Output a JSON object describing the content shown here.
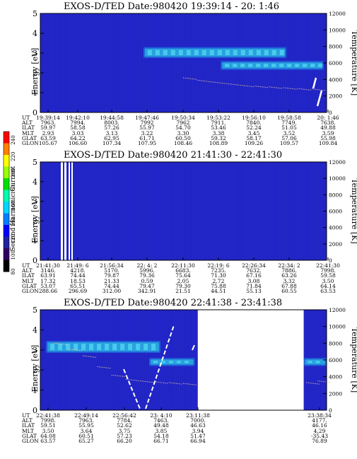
{
  "colors": {
    "background_field": "#2326c8",
    "band_bright": "#2a9fe0",
    "band_core": "#4fd6f0",
    "band_mid": "#1e5fd8",
    "temperature_dots": "#e8c9a0",
    "spike": "#ffffff",
    "frame": "#000000"
  },
  "colorbar": {
    "label": "Second Harmonic Current",
    "ticks": [
      "240",
      "220",
      "200",
      "180",
      "160",
      "140",
      "120",
      "100",
      "80"
    ],
    "colors": [
      "#ff0000",
      "#ff8000",
      "#ffff00",
      "#9bff00",
      "#00e000",
      "#00ffb0",
      "#00d8ff",
      "#0080ff",
      "#0000ff",
      "#2020a0",
      "#300060",
      "#000000"
    ]
  },
  "row_labels": [
    "UT",
    "ALT",
    "ILAT",
    "MLT",
    "GLAT",
    "GLON"
  ],
  "panels": [
    {
      "title": "EXOS-D/TED   Date:980420  19:39:14 - 20: 1:46",
      "y_ticks": [
        "0",
        "1",
        "2",
        "3",
        "4",
        "5"
      ],
      "y2_ticks": [
        "0",
        "2000",
        "4000",
        "6000",
        "8000",
        "10000",
        "12000"
      ],
      "ylabel": "Energy [eV]",
      "y2label": "Temperature [K]",
      "columns": [
        {
          "UT": "19:39:14",
          "ALT": "7963.",
          "ILAT": "59.97",
          "MLT": "2.93",
          "GLAT": "63.59",
          "GLON": "105.67"
        },
        {
          "UT": "19:42:10",
          "ALT": "7994.",
          "ILAT": "58.58",
          "MLT": "3.03",
          "GLAT": "64.22",
          "GLON": "106.60"
        },
        {
          "UT": "19:44:58",
          "ALT": "8003.",
          "ILAT": "57.26",
          "MLT": "3.13",
          "GLAT": "62.95",
          "GLON": "107.34"
        },
        {
          "UT": "19:47:46",
          "ALT": "7992",
          "ILAT": "55.97",
          "MLT": "3.22",
          "GLAT": "61.71",
          "GLON": "107.95"
        },
        {
          "UT": "19:50:34",
          "ALT": "7962",
          "ILAT": "54.70",
          "MLT": "3.30",
          "GLAT": "60.50",
          "GLON": "108.46"
        },
        {
          "UT": "19:53:22",
          "ALT": "7911.",
          "ILAT": "53.46",
          "MLT": "3.38",
          "GLAT": "59.32",
          "GLON": "108.89"
        },
        {
          "UT": "19:56:10",
          "ALT": "7840.",
          "ILAT": "52.24",
          "MLT": "3.45",
          "GLAT": "58.17",
          "GLON": "109.26"
        },
        {
          "UT": "19:58:58",
          "ALT": "7749.",
          "ILAT": "51.05",
          "MLT": "3.52",
          "GLAT": "57.06",
          "GLON": "109.57"
        },
        {
          "UT": "20: 1:46",
          "ALT": "7638.",
          "ILAT": "49.88",
          "MLT": "3.59",
          "GLAT": "55.98",
          "GLON": "109.84"
        }
      ]
    },
    {
      "title": "EXOS-D/TED   Date:980420  21:41:30 - 22:41:30",
      "y_ticks": [
        "0",
        "1",
        "2",
        "3",
        "4",
        "5"
      ],
      "y2_ticks": [
        "0",
        "2000",
        "4000",
        "6000",
        "8000",
        "10000",
        "12000"
      ],
      "ylabel": "Energy [eV]",
      "y2label": "Temperature [K]",
      "columns": [
        {
          "UT": "21:41:30",
          "ALT": "3146.",
          "ILAT": "63.91",
          "MLT": "17.32",
          "GLAT": "53.07",
          "GLON": "288.66"
        },
        {
          "UT": "21:49: 6",
          "ALT": "4218.",
          "ILAT": "74.44",
          "MLT": "18.53",
          "GLAT": "65.51",
          "GLON": "296.69"
        },
        {
          "UT": "21:56:34",
          "ALT": "5170.",
          "ILAT": "79.87",
          "MLT": "21.33",
          "GLAT": "74.44",
          "GLON": "312.00"
        },
        {
          "UT": "22: 4: 2",
          "ALT": "5996.",
          "ILAT": "79.36",
          "MLT": "0.59",
          "GLAT": "79.47",
          "GLON": "342.91"
        },
        {
          "UT": "22:11:30",
          "ALT": "6683.",
          "ILAT": "75.64",
          "MLT": "2.05",
          "GLAT": "79.30",
          "GLON": "21.51"
        },
        {
          "UT": "22:19: 6",
          "ALT": "7235.",
          "ILAT": "71.30",
          "MLT": "2.72",
          "GLAT": "75.88",
          "GLON": "44.51"
        },
        {
          "UT": "22:26:34",
          "ALT": "7632.",
          "ILAT": "67.16",
          "MLT": "3.08",
          "GLAT": "71.84",
          "GLON": "55.13"
        },
        {
          "UT": "22:34: 2",
          "ALT": "7886.",
          "ILAT": "63.26",
          "MLT": "3.32",
          "GLAT": "67.88",
          "GLON": "60.55"
        },
        {
          "UT": "22:41:30",
          "ALT": "7998.",
          "ILAT": "59.58",
          "MLT": "3.50",
          "GLAT": "64.14",
          "GLON": "63.53"
        }
      ]
    },
    {
      "title": "EXOS-D/TED   Date:980420  22:41:38 - 23:41:38",
      "y_ticks": [
        "0",
        "1",
        "2",
        "3",
        "4",
        "5"
      ],
      "y2_ticks": [
        "0",
        "2000",
        "4000",
        "6000",
        "8000",
        "10000",
        "12000"
      ],
      "ylabel": "Energy [eV]",
      "y2label": "Temperature [K]",
      "columns": [
        {
          "UT": "22:41:38",
          "ALT": "7998.",
          "ILAT": "59.51",
          "MLT": "3.50",
          "GLAT": "64.08",
          "GLON": "63.57"
        },
        {
          "UT": "22:49:14",
          "ALT": "7963.",
          "ILAT": "55.95",
          "MLT": "3.64",
          "GLAT": "60.51",
          "GLON": "65.27"
        },
        {
          "UT": "22:56:42",
          "ALT": "7784.",
          "ILAT": "52.62",
          "MLT": "3.75",
          "GLAT": "57.23",
          "GLON": "66.20"
        },
        {
          "UT": "23: 4:10",
          "ALT": "7463.",
          "ILAT": "49.48",
          "MLT": "3.85",
          "GLAT": "54.18",
          "GLON": "66.71"
        },
        {
          "UT": "23:11:38",
          "ALT": "7000.",
          "ILAT": "46.63",
          "MLT": "3.94",
          "GLAT": "51.47",
          "GLON": "66.94"
        },
        {
          "UT": "23:38:34",
          "ALT": "4177.",
          "ILAT": "46.16",
          "MLT": "4.29",
          "GLAT": "-35.43",
          "GLON": "76.89"
        }
      ]
    }
  ],
  "chart_data": [
    {
      "type": "heatmap",
      "title": "EXOS-D/TED   Date:980420  19:39:14 - 20: 1:46",
      "ylabel": "Energy [eV]",
      "y2label": "Temperature [K]",
      "ylim": [
        0,
        5
      ],
      "y2lim": [
        0,
        12000
      ],
      "x": [
        "19:39:14",
        "19:42:10",
        "19:44:58",
        "19:47:46",
        "19:50:34",
        "19:53:22",
        "19:56:10",
        "19:58:58",
        "20: 1:46"
      ],
      "bands": [
        {
          "t_start": 0.36,
          "t_end": 0.86,
          "e_low": 2.75,
          "e_high": 3.3
        },
        {
          "t_start": 0.63,
          "t_end": 0.99,
          "e_low": 2.15,
          "e_high": 2.6
        }
      ],
      "temperature_trace": {
        "x": [
          0.5,
          0.55,
          0.6,
          0.65,
          0.7,
          0.75,
          0.8,
          0.85,
          0.9,
          0.95
        ],
        "y": [
          4200,
          3900,
          3700,
          3500,
          3300,
          3200,
          3100,
          3000,
          2900,
          2850
        ]
      }
    },
    {
      "type": "heatmap",
      "title": "EXOS-D/TED   Date:980420  21:41:30 - 22:41:30",
      "ylabel": "Energy [eV]",
      "y2label": "Temperature [K]",
      "ylim": [
        0,
        5
      ],
      "y2lim": [
        0,
        12000
      ],
      "x": [
        "21:41:30",
        "21:49: 6",
        "21:56:34",
        "22: 4: 2",
        "22:11:30",
        "22:19: 6",
        "22:26:34",
        "22:34: 2",
        "22:41:30"
      ],
      "bands": []
    },
    {
      "type": "heatmap",
      "title": "EXOS-D/TED   Date:980420  22:41:38 - 23:41:38",
      "ylabel": "Energy [eV]",
      "y2label": "Temperature [K]",
      "ylim": [
        0,
        5
      ],
      "y2lim": [
        0,
        12000
      ],
      "x": [
        "22:41:38",
        "22:49:14",
        "22:56:42",
        "23: 4:10",
        "23:11:38",
        "23:38:34"
      ],
      "bands": [
        {
          "t_start": 0.02,
          "t_end": 0.42,
          "e_low": 2.85,
          "e_high": 3.45
        },
        {
          "t_start": 0.38,
          "t_end": 0.54,
          "e_low": 2.2,
          "e_high": 2.6
        },
        {
          "t_start": 0.92,
          "t_end": 1.0,
          "e_low": 2.2,
          "e_high": 2.6
        }
      ],
      "data_gap": {
        "t_start": 0.55,
        "t_end": 0.92
      },
      "temperature_trace": {
        "x": [
          0.05,
          0.1,
          0.15,
          0.2,
          0.25,
          0.3,
          0.35,
          0.4,
          0.45,
          0.5,
          0.93,
          0.97
        ],
        "y": [
          8000,
          7300,
          6500,
          5200,
          4200,
          3700,
          3500,
          3400,
          3300,
          3200,
          3300,
          3500
        ]
      }
    }
  ]
}
